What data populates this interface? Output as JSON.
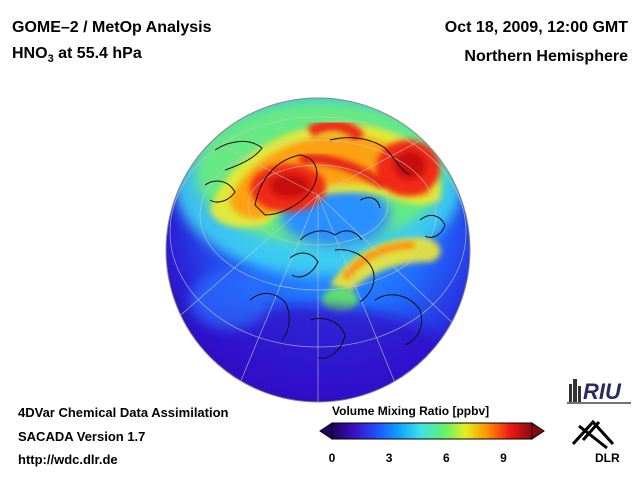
{
  "header": {
    "title": "GOME–2 / MetOp Analysis",
    "species": "HNO",
    "species_sub": "3",
    "level": " at 55.4 hPa",
    "datetime": "Oct 18, 2009, 12:00 GMT",
    "region": "Northern Hemisphere"
  },
  "footer": {
    "method": "4DVar Chemical Data Assimilation",
    "version": "SACADA Version 1.7",
    "url": "http://wdc.dlr.de"
  },
  "colorbar": {
    "title": "Volume Mixing Ratio [ppbv]",
    "ticks": [
      "0",
      "3",
      "6",
      "9"
    ],
    "range": [
      0,
      10.5
    ],
    "colors": [
      "#200060",
      "#3a10c0",
      "#2050ff",
      "#10a0ff",
      "#40e0e8",
      "#60f070",
      "#e0f020",
      "#ff9000",
      "#f01818",
      "#8a0a0a"
    ]
  },
  "logos": {
    "riu": "RIU",
    "dlr": "DLR"
  },
  "map": {
    "projection": "orthographic",
    "center": "Northern Hemisphere, Arctic",
    "maxima": [
      {
        "area": "Greenland",
        "level": "high"
      },
      {
        "area": "Eastern Siberia / Pacific Arctic",
        "level": "high"
      },
      {
        "area": "Arctic Ocean ring",
        "level": "medium"
      },
      {
        "area": "Central Asia",
        "level": "medium"
      }
    ]
  }
}
